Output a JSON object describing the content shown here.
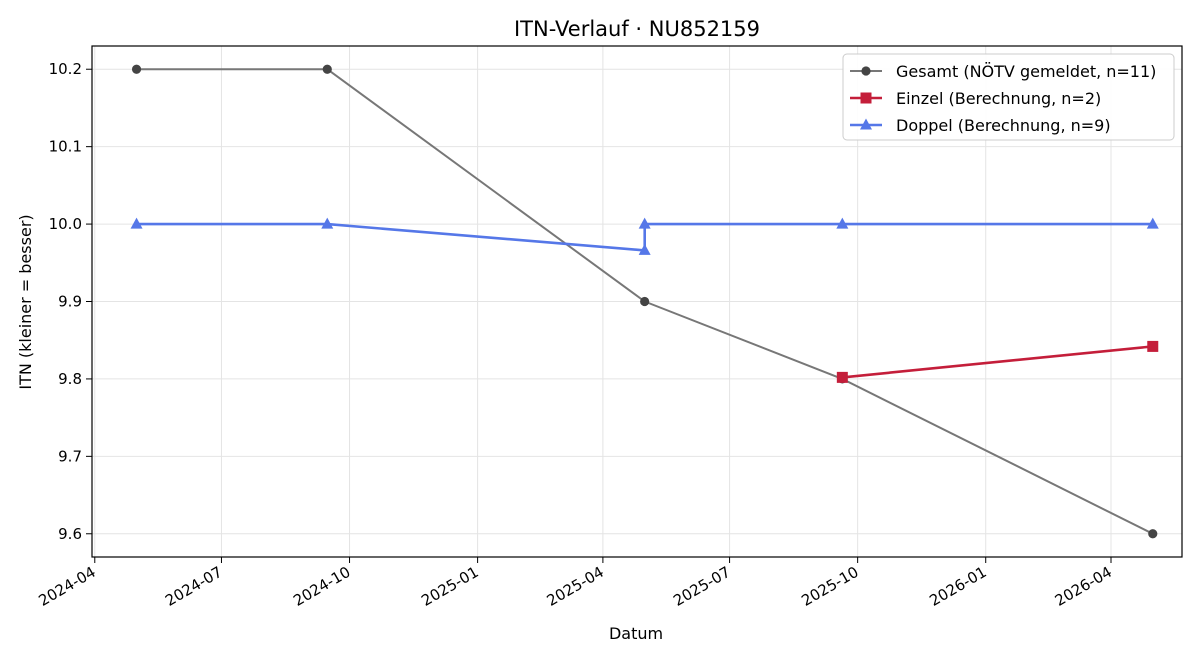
{
  "chart_data": {
    "type": "line",
    "title": "ITN-Verlauf · NU852159",
    "xlabel": "Datum",
    "ylabel": "ITN  (kleiner = besser)",
    "x_axis_type": "date",
    "xlim": [
      "2024-03-30",
      "2026-05-22"
    ],
    "ylim": [
      9.57,
      10.23
    ],
    "x_ticks": [
      "2024-04-01",
      "2024-07-01",
      "2024-10-01",
      "2025-01-01",
      "2025-04-01",
      "2025-07-01",
      "2025-10-01",
      "2026-01-01",
      "2026-04-01"
    ],
    "x_tick_labels": [
      "2024-04",
      "2024-07",
      "2024-10",
      "2025-01",
      "2025-04",
      "2025-07",
      "2025-10",
      "2026-01",
      "2026-04"
    ],
    "y_ticks": [
      9.6,
      9.7,
      9.8,
      9.9,
      10.0,
      10.1,
      10.2
    ],
    "y_tick_labels": [
      "9.6",
      "9.7",
      "9.8",
      "9.9",
      "10.0",
      "10.1",
      "10.2"
    ],
    "grid": true,
    "legend_position": "top-right",
    "series": [
      {
        "name": "Gesamt (NÖTV gemeldet, n=11)",
        "color": "#777777",
        "marker_color": "#444444",
        "marker": "circle",
        "points": [
          {
            "x": "2024-05-01",
            "y": 10.2
          },
          {
            "x": "2024-09-15",
            "y": 10.2
          },
          {
            "x": "2025-05-01",
            "y": 9.9
          },
          {
            "x": "2025-09-20",
            "y": 9.8
          },
          {
            "x": "2026-05-01",
            "y": 9.6
          }
        ]
      },
      {
        "name": "Einzel (Berechnung, n=2)",
        "color": "#c41e3a",
        "marker_color": "#c41e3a",
        "marker": "square",
        "points": [
          {
            "x": "2025-09-20",
            "y": 9.802
          },
          {
            "x": "2026-05-01",
            "y": 9.842
          }
        ]
      },
      {
        "name": "Doppel (Berechnung, n=9)",
        "color": "#5577e8",
        "marker_color": "#5577e8",
        "marker": "triangle",
        "points": [
          {
            "x": "2024-05-01",
            "y": 10.0
          },
          {
            "x": "2024-09-15",
            "y": 10.0
          },
          {
            "x": "2025-05-01",
            "y": 9.966
          },
          {
            "x": "2025-05-01",
            "y": 10.0
          },
          {
            "x": "2025-09-20",
            "y": 10.0
          },
          {
            "x": "2026-05-01",
            "y": 10.0
          }
        ]
      }
    ]
  }
}
